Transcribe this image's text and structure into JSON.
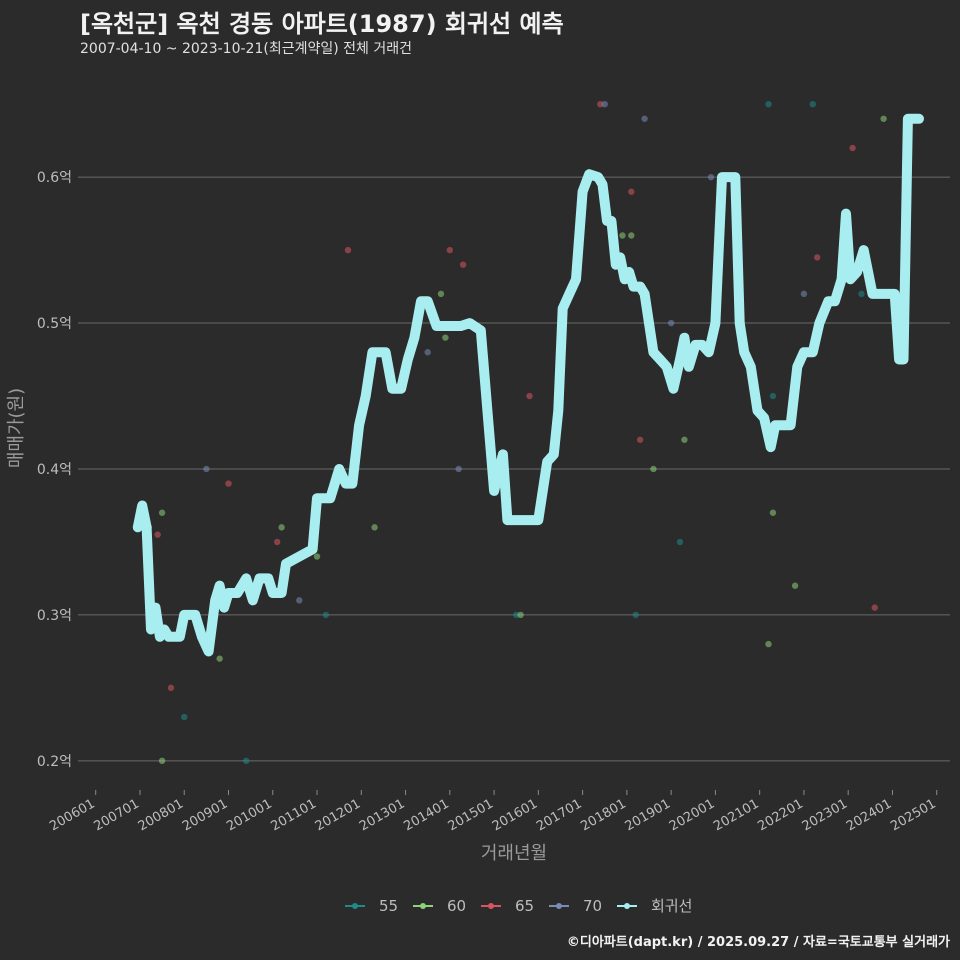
{
  "header": {
    "title": "[옥천군] 옥천 경동 아파트(1987) 회귀선 예측",
    "subtitle": "2007-04-10 ~ 2023-10-21(최근계약일) 전체 거래건"
  },
  "caption": "©디아파트(dapt.kr) / 2025.09.27 / 자료=국토교통부 실거래가",
  "chart_data": {
    "type": "scatter",
    "xlabel": "거래년월",
    "ylabel": "매매가(원)",
    "x_ticks": [
      "200601",
      "200701",
      "200801",
      "200901",
      "201001",
      "201101",
      "201201",
      "201301",
      "201401",
      "201501",
      "201601",
      "201701",
      "201801",
      "201901",
      "202001",
      "202101",
      "202201",
      "202301",
      "202401",
      "202501"
    ],
    "y_ticks": [
      {
        "value": 0.2,
        "label": "0.2억"
      },
      {
        "value": 0.3,
        "label": "0.3억"
      },
      {
        "value": 0.4,
        "label": "0.4억"
      },
      {
        "value": 0.5,
        "label": "0.5억"
      },
      {
        "value": 0.6,
        "label": "0.6억"
      }
    ],
    "xlim": [
      2005.6,
      2025.3
    ],
    "ylim": [
      0.18,
      0.67
    ],
    "grid": true,
    "legend_position": "bottom",
    "colors": {
      "55": "#1f8a8a",
      "60": "#8fd07a",
      "65": "#d9545e",
      "70": "#7a8bb8",
      "회귀선": "#a8eef0"
    },
    "series": [
      {
        "name": "55",
        "points": [
          [
            2008.0,
            0.23
          ],
          [
            2009.4,
            0.2
          ],
          [
            2011.2,
            0.3
          ],
          [
            2015.5,
            0.3
          ],
          [
            2018.2,
            0.3
          ],
          [
            2019.2,
            0.35
          ],
          [
            2021.3,
            0.45
          ],
          [
            2021.2,
            0.65
          ],
          [
            2022.2,
            0.65
          ],
          [
            2023.3,
            0.52
          ]
        ]
      },
      {
        "name": "60",
        "points": [
          [
            2007.2,
            0.36
          ],
          [
            2007.5,
            0.37
          ],
          [
            2007.5,
            0.2
          ],
          [
            2008.8,
            0.27
          ],
          [
            2010.2,
            0.36
          ],
          [
            2011.0,
            0.34
          ],
          [
            2012.3,
            0.36
          ],
          [
            2013.8,
            0.52
          ],
          [
            2013.9,
            0.49
          ],
          [
            2015.6,
            0.3
          ],
          [
            2017.9,
            0.56
          ],
          [
            2018.1,
            0.56
          ],
          [
            2018.6,
            0.4
          ],
          [
            2019.3,
            0.42
          ],
          [
            2021.2,
            0.28
          ],
          [
            2021.3,
            0.37
          ],
          [
            2021.8,
            0.32
          ],
          [
            2023.8,
            0.64
          ]
        ]
      },
      {
        "name": "65",
        "points": [
          [
            2007.4,
            0.355
          ],
          [
            2007.7,
            0.25
          ],
          [
            2009.0,
            0.39
          ],
          [
            2010.1,
            0.35
          ],
          [
            2011.7,
            0.55
          ],
          [
            2014.0,
            0.55
          ],
          [
            2014.3,
            0.54
          ],
          [
            2015.8,
            0.45
          ],
          [
            2017.4,
            0.65
          ],
          [
            2018.1,
            0.59
          ],
          [
            2018.3,
            0.42
          ],
          [
            2022.3,
            0.545
          ],
          [
            2023.1,
            0.62
          ],
          [
            2023.6,
            0.305
          ]
        ]
      },
      {
        "name": "70",
        "points": [
          [
            2008.5,
            0.4
          ],
          [
            2010.6,
            0.31
          ],
          [
            2014.2,
            0.4
          ],
          [
            2013.5,
            0.48
          ],
          [
            2017.5,
            0.65
          ],
          [
            2017.5,
            0.58
          ],
          [
            2018.4,
            0.64
          ],
          [
            2019.0,
            0.5
          ],
          [
            2019.9,
            0.6
          ],
          [
            2021.5,
            0.43
          ],
          [
            2022.0,
            0.52
          ]
        ]
      },
      {
        "name": "회귀선",
        "points": [
          [
            2006.95,
            0.36
          ],
          [
            2007.05,
            0.375
          ],
          [
            2007.15,
            0.36
          ],
          [
            2007.25,
            0.29
          ],
          [
            2007.35,
            0.305
          ],
          [
            2007.45,
            0.285
          ],
          [
            2007.55,
            0.29
          ],
          [
            2007.65,
            0.285
          ],
          [
            2007.9,
            0.285
          ],
          [
            2008.0,
            0.3
          ],
          [
            2008.25,
            0.3
          ],
          [
            2008.4,
            0.285
          ],
          [
            2008.55,
            0.275
          ],
          [
            2008.7,
            0.31
          ],
          [
            2008.8,
            0.32
          ],
          [
            2008.9,
            0.305
          ],
          [
            2009.0,
            0.315
          ],
          [
            2009.2,
            0.315
          ],
          [
            2009.4,
            0.325
          ],
          [
            2009.55,
            0.31
          ],
          [
            2009.7,
            0.325
          ],
          [
            2009.9,
            0.325
          ],
          [
            2010.0,
            0.315
          ],
          [
            2010.2,
            0.315
          ],
          [
            2010.3,
            0.335
          ],
          [
            2010.6,
            0.34
          ],
          [
            2010.9,
            0.345
          ],
          [
            2011.0,
            0.38
          ],
          [
            2011.3,
            0.38
          ],
          [
            2011.5,
            0.4
          ],
          [
            2011.65,
            0.39
          ],
          [
            2011.8,
            0.39
          ],
          [
            2011.95,
            0.43
          ],
          [
            2012.1,
            0.45
          ],
          [
            2012.25,
            0.48
          ],
          [
            2012.55,
            0.48
          ],
          [
            2012.7,
            0.455
          ],
          [
            2012.9,
            0.455
          ],
          [
            2013.05,
            0.475
          ],
          [
            2013.2,
            0.49
          ],
          [
            2013.35,
            0.515
          ],
          [
            2013.5,
            0.515
          ],
          [
            2013.7,
            0.498
          ],
          [
            2014.0,
            0.498
          ],
          [
            2014.25,
            0.498
          ],
          [
            2014.45,
            0.5
          ],
          [
            2014.7,
            0.495
          ],
          [
            2014.85,
            0.44
          ],
          [
            2015.0,
            0.385
          ],
          [
            2015.2,
            0.41
          ],
          [
            2015.3,
            0.365
          ],
          [
            2015.6,
            0.365
          ],
          [
            2015.9,
            0.365
          ],
          [
            2016.0,
            0.365
          ],
          [
            2016.2,
            0.405
          ],
          [
            2016.35,
            0.41
          ],
          [
            2016.45,
            0.44
          ],
          [
            2016.55,
            0.51
          ],
          [
            2016.7,
            0.52
          ],
          [
            2016.85,
            0.53
          ],
          [
            2017.0,
            0.59
          ],
          [
            2017.15,
            0.602
          ],
          [
            2017.35,
            0.6
          ],
          [
            2017.45,
            0.595
          ],
          [
            2017.55,
            0.57
          ],
          [
            2017.65,
            0.57
          ],
          [
            2017.75,
            0.54
          ],
          [
            2017.85,
            0.545
          ],
          [
            2017.95,
            0.53
          ],
          [
            2018.05,
            0.535
          ],
          [
            2018.15,
            0.525
          ],
          [
            2018.3,
            0.525
          ],
          [
            2018.4,
            0.52
          ],
          [
            2018.5,
            0.5
          ],
          [
            2018.6,
            0.48
          ],
          [
            2018.75,
            0.475
          ],
          [
            2018.9,
            0.47
          ],
          [
            2019.05,
            0.455
          ],
          [
            2019.2,
            0.475
          ],
          [
            2019.3,
            0.49
          ],
          [
            2019.4,
            0.47
          ],
          [
            2019.55,
            0.485
          ],
          [
            2019.7,
            0.485
          ],
          [
            2019.85,
            0.48
          ],
          [
            2020.0,
            0.5
          ],
          [
            2020.15,
            0.6
          ],
          [
            2020.3,
            0.6
          ],
          [
            2020.45,
            0.6
          ],
          [
            2020.55,
            0.5
          ],
          [
            2020.65,
            0.48
          ],
          [
            2020.8,
            0.47
          ],
          [
            2020.95,
            0.44
          ],
          [
            2021.1,
            0.435
          ],
          [
            2021.25,
            0.415
          ],
          [
            2021.35,
            0.43
          ],
          [
            2021.5,
            0.43
          ],
          [
            2021.7,
            0.43
          ],
          [
            2021.85,
            0.47
          ],
          [
            2022.0,
            0.48
          ],
          [
            2022.2,
            0.48
          ],
          [
            2022.35,
            0.5
          ],
          [
            2022.55,
            0.515
          ],
          [
            2022.7,
            0.515
          ],
          [
            2022.85,
            0.53
          ],
          [
            2022.95,
            0.575
          ],
          [
            2023.05,
            0.53
          ],
          [
            2023.2,
            0.535
          ],
          [
            2023.35,
            0.55
          ],
          [
            2023.55,
            0.52
          ],
          [
            2023.75,
            0.52
          ],
          [
            2024.05,
            0.52
          ],
          [
            2024.15,
            0.475
          ],
          [
            2024.25,
            0.475
          ],
          [
            2024.35,
            0.64
          ],
          [
            2024.6,
            0.64
          ]
        ]
      }
    ]
  }
}
